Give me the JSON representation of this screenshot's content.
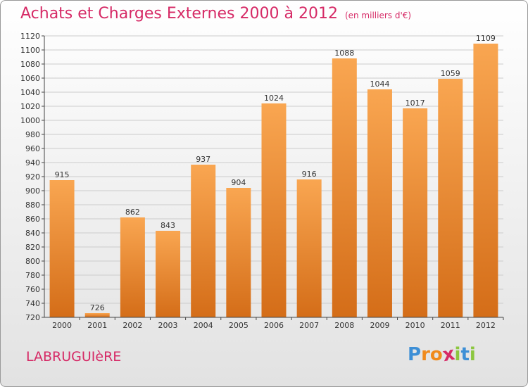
{
  "header": {
    "title": "Achats et Charges Externes 2000 à 2012",
    "unit": "(en milliers d'€)"
  },
  "footer": {
    "town": "LABRUGUIèRE",
    "logo_letters": [
      "P",
      "r",
      "o",
      "x",
      "i",
      "t",
      "i"
    ],
    "logo_colors": [
      "#3d8fd6",
      "#f08a1c",
      "#f08a1c",
      "#d62a66",
      "#8cc63f",
      "#3d8fd6",
      "#8cc63f"
    ]
  },
  "colors": {
    "bar_top": "#f9a651",
    "bar_bottom": "#d46d18",
    "axis": "#444444",
    "grid": "#cccccc",
    "title": "#d62a66"
  },
  "chart_data": {
    "type": "bar",
    "title": "Achats et Charges Externes 2000 à 2012",
    "subtitle": "(en milliers d'€)",
    "categories": [
      "2000",
      "2001",
      "2002",
      "2003",
      "2004",
      "2005",
      "2006",
      "2007",
      "2008",
      "2009",
      "2010",
      "2011",
      "2012"
    ],
    "values": [
      915,
      726,
      862,
      843,
      937,
      904,
      1024,
      916,
      1088,
      1044,
      1017,
      1059,
      1109
    ],
    "ylim": [
      720,
      1120
    ],
    "yticks": [
      720,
      740,
      760,
      780,
      800,
      820,
      840,
      860,
      880,
      900,
      920,
      940,
      960,
      980,
      1000,
      1020,
      1040,
      1060,
      1080,
      1100,
      1120
    ],
    "xlabel": "",
    "ylabel": "",
    "grid": true
  }
}
